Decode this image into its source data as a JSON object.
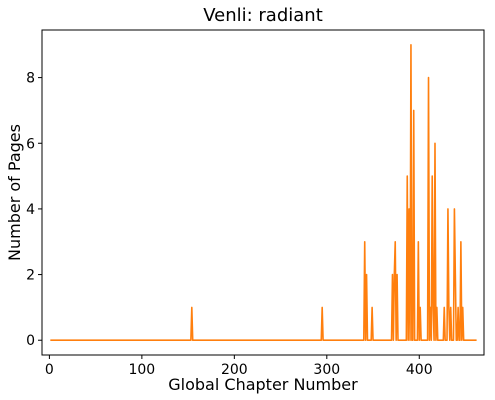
{
  "chart_data": {
    "type": "line",
    "title": "Venli: radiant",
    "xlabel": "Global Chapter Number",
    "ylabel": "Number of Pages",
    "xlim": [
      -8,
      470
    ],
    "ylim": [
      -0.45,
      9.45
    ],
    "xticks": [
      0,
      100,
      200,
      300,
      400
    ],
    "yticks": [
      0,
      2,
      4,
      6,
      8
    ],
    "grid": false,
    "series": [
      {
        "color": "#ff7f0e",
        "x": [
          1,
          153,
          154,
          155,
          294,
          295,
          296,
          340,
          341,
          342,
          343,
          344,
          345,
          348,
          349,
          350,
          370,
          371,
          372,
          373,
          374,
          375,
          376,
          377,
          378,
          379,
          386,
          387,
          388,
          389,
          390,
          391,
          392,
          393,
          394,
          395,
          396,
          397,
          398,
          399,
          400,
          401,
          402,
          403,
          404,
          405,
          406,
          407,
          408,
          409,
          410,
          411,
          412,
          413,
          414,
          415,
          416,
          417,
          418,
          419,
          420,
          421,
          422,
          423,
          424,
          425,
          426,
          427,
          428,
          429,
          430,
          431,
          432,
          433,
          434,
          435,
          436,
          437,
          438,
          439,
          440,
          441,
          442,
          443,
          444,
          445,
          446,
          447,
          448,
          449,
          450,
          451,
          452,
          453,
          454,
          455,
          456,
          457,
          458,
          459,
          460,
          461,
          462
        ],
        "y": [
          0,
          0,
          1,
          0,
          0,
          1,
          0,
          0,
          3,
          0,
          2,
          0,
          0,
          0,
          1,
          0,
          0,
          2,
          0,
          2,
          3,
          0,
          2,
          0,
          0,
          0,
          0,
          5,
          0,
          4,
          0,
          9,
          0,
          0,
          7,
          0,
          0,
          0,
          0,
          3,
          0,
          1,
          0,
          0,
          0,
          0,
          0,
          0,
          0,
          0,
          8,
          0,
          1,
          0,
          5,
          1,
          0,
          6,
          0,
          1,
          0,
          0,
          0,
          0,
          0,
          0,
          0,
          1,
          0,
          0,
          0,
          4,
          1,
          0,
          1,
          0,
          0,
          0,
          4,
          2,
          0,
          0,
          1,
          0,
          0,
          3,
          0,
          1,
          0,
          0,
          0,
          0,
          0,
          0,
          0,
          0,
          0,
          0,
          0,
          0,
          0,
          0,
          0
        ]
      }
    ]
  }
}
